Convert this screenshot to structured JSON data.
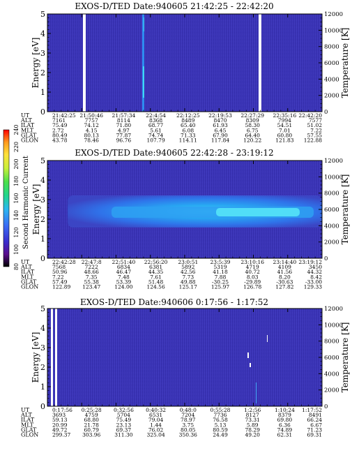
{
  "chart_data": [
    {
      "type": "heatmap",
      "title": "EXOS-D/TED   Date:940605  21:42:25 - 22:42:20",
      "ylabel": "Energy [eV]",
      "ylabel_right": "Temperature [K]",
      "ylim": [
        0,
        5
      ],
      "ylim_right": [
        0,
        12000
      ],
      "yticks": [
        "0",
        "1",
        "2",
        "3",
        "4",
        "5"
      ],
      "yticks_right": [
        "0",
        "2000",
        "4000",
        "6000",
        "8000",
        "10000",
        "12000"
      ],
      "band_energy_ev": null,
      "table": {
        "row_labels": [
          "UT",
          "ALT",
          "ILAT",
          "MLT",
          "GLAT",
          "GLON"
        ],
        "columns": [
          [
            "21:42:25",
            "7161",
            "75.49",
            "2.72",
            "80.49",
            "43.78"
          ],
          [
            "21:50:46",
            "7757",
            "74.12",
            "4.15",
            "80.13",
            "78.46"
          ],
          [
            "21:57:34",
            "8114",
            "71.80",
            "4.97",
            "77.87",
            "96.76"
          ],
          [
            "22:4:54",
            "8368",
            "68.77",
            "5.61",
            "74.74",
            "107.79"
          ],
          [
            "22:12:25",
            "8489",
            "65.40",
            "6.08",
            "71.33",
            "114.11"
          ],
          [
            "22:19:53",
            "8470",
            "61.93",
            "6.45",
            "67.90",
            "117.84"
          ],
          [
            "22:27:29",
            "8309",
            "58.30",
            "6.75",
            "64.40",
            "120.22"
          ],
          [
            "22:35:16",
            "7994",
            "54.51",
            "7.01",
            "60.80",
            "121.83"
          ],
          [
            "22:42:20",
            "7577",
            "51.02",
            "7.22",
            "57.55",
            "122.88"
          ]
        ]
      }
    },
    {
      "type": "heatmap",
      "title": "EXOS-D/TED   Date:940605  22:42:28 - 23:19:12",
      "ylabel": "Energy [eV]",
      "ylabel_right": "Temperature [K]",
      "ylim": [
        0,
        5
      ],
      "ylim_right": [
        0,
        12000
      ],
      "yticks": [
        "0",
        "1",
        "2",
        "3",
        "4",
        "5"
      ],
      "yticks_right": [
        "0",
        "2000",
        "4000",
        "6000",
        "8000",
        "10000",
        "12000"
      ],
      "band_energy_ev": [
        1.9,
        2.5
      ],
      "colorbar": {
        "label": "Second Harmonic Current",
        "ticks": [
          "80",
          "100",
          "120",
          "140",
          "160",
          "180",
          "200",
          "220",
          "240"
        ],
        "colors": [
          "#000000",
          "#5a0d8c",
          "#3a2dcc",
          "#3a6cf5",
          "#2bb7f0",
          "#22d68c",
          "#4be04b",
          "#c8f03a",
          "#ffe13a",
          "#ff9a1e",
          "#ff3a1e",
          "#ff0000"
        ]
      },
      "table": {
        "row_labels": [
          "UT",
          "ALT",
          "ILAT",
          "MLT",
          "GLAT",
          "GLON"
        ],
        "columns": [
          [
            "22:42:28",
            "7568",
            "50.96",
            "7.22",
            "57.49",
            "122.89"
          ],
          [
            "22:47:8",
            "7222",
            "48.66",
            "7.35",
            "55.38",
            "123.47"
          ],
          [
            "22:51:40",
            "6834",
            "46.47",
            "7.48",
            "53.39",
            "124.00"
          ],
          [
            "22:56:20",
            "6381",
            "44.35",
            "7.61",
            "51.48",
            "124.56"
          ],
          [
            "23:0:51",
            "5892",
            "42.56",
            "7.73",
            "49.88",
            "125.17"
          ],
          [
            "23:5:39",
            "5319",
            "41.18",
            "7.88",
            "-30.25",
            "125.97"
          ],
          [
            "23:10:16",
            "4719",
            "40.72",
            "8.03",
            "-29.89",
            "126.78"
          ],
          [
            "23:14:40",
            "4109",
            "41.56",
            "8.20",
            "-30.63",
            "127.82"
          ],
          [
            "23:19:12",
            "3450",
            "44.32",
            "8.42",
            "-33.00",
            "129.33"
          ]
        ]
      }
    },
    {
      "type": "heatmap",
      "title": "EXOS-D/TED   Date:940606  0:17:56 - 1:17:52",
      "ylabel": "Energy [eV]",
      "ylabel_right": "Temperature [K]",
      "ylim": [
        0,
        5
      ],
      "ylim_right": [
        0,
        12000
      ],
      "yticks": [
        "0",
        "1",
        "2",
        "3",
        "4",
        "5"
      ],
      "yticks_right": [
        "0",
        "2000",
        "4000",
        "6000",
        "8000",
        "10000",
        "12000"
      ],
      "band_energy_ev": null,
      "table": {
        "row_labels": [
          "UT",
          "ALT",
          "ILAT",
          "MLT",
          "GLAT",
          "GLON"
        ],
        "columns": [
          [
            "0:17:56",
            "3693",
            "59.13",
            "20.99",
            "49.72",
            "299.37"
          ],
          [
            "0:25:28",
            "4759",
            "68.80",
            "21.78",
            "60.79",
            "303.96"
          ],
          [
            "0:32:56",
            "5704",
            "75.49",
            "23.13",
            "69.37",
            "311.30"
          ],
          [
            "0:40:32",
            "6531",
            "79.04",
            "1.44",
            "76.02",
            "325.04"
          ],
          [
            "0:48:0",
            "7204",
            "78.97",
            "3.75",
            "80.05",
            "350.36"
          ],
          [
            "0:55:28",
            "7736",
            "76.58",
            "5.13",
            "80.59",
            "24.49"
          ],
          [
            "1:2:56",
            "8127",
            "73.31",
            "5.89",
            "78.29",
            "49.20"
          ],
          [
            "1:10:24",
            "8379",
            "69.80",
            "6.36",
            "74.89",
            "62.31"
          ],
          [
            "1:17:52",
            "8491",
            "66.24",
            "6.67",
            "71.23",
            "69.31"
          ]
        ]
      }
    }
  ]
}
